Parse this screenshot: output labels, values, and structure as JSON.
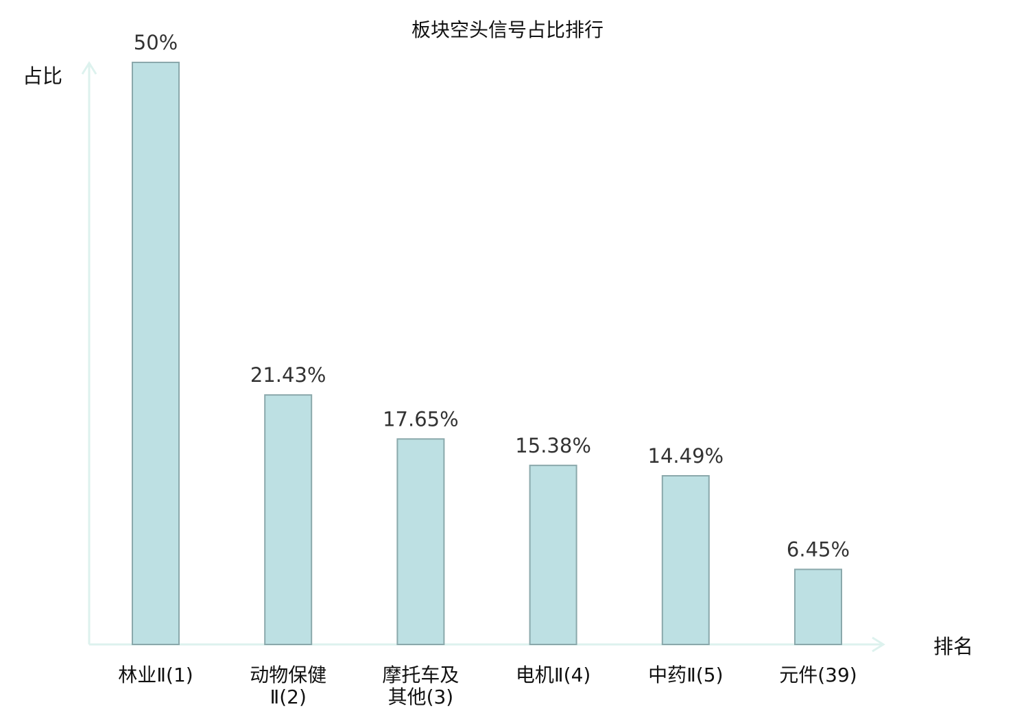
{
  "chart_data": {
    "type": "bar",
    "title": "板块空头信号占比排行",
    "ylabel": "占比",
    "xlabel": "排名",
    "categories": [
      "林业Ⅱ(1)",
      "动物保健Ⅱ(2)",
      "摩托车及其他(3)",
      "电机Ⅱ(4)",
      "中药Ⅱ(5)",
      "元件(39)"
    ],
    "category_lines": [
      [
        "林业Ⅱ(1)"
      ],
      [
        "动物保健",
        "Ⅱ(2)"
      ],
      [
        "摩托车及",
        "其他(3)"
      ],
      [
        "电机Ⅱ(4)"
      ],
      [
        "中药Ⅱ(5)"
      ],
      [
        "元件(39)"
      ]
    ],
    "values": [
      50,
      21.43,
      17.65,
      15.38,
      14.49,
      6.45
    ],
    "value_labels": [
      "50%",
      "21.43%",
      "17.65%",
      "15.38%",
      "14.49%",
      "6.45%"
    ],
    "highlight_index": 5,
    "ylim": [
      0,
      50
    ],
    "grid": false,
    "colors": {
      "bar_fill": "#bde0e3",
      "bar_stroke": "#8aa8ab",
      "axis": "#ddf2ee",
      "highlight_label": "#dd1111",
      "label": "#111111",
      "value_label": "#333333"
    }
  }
}
